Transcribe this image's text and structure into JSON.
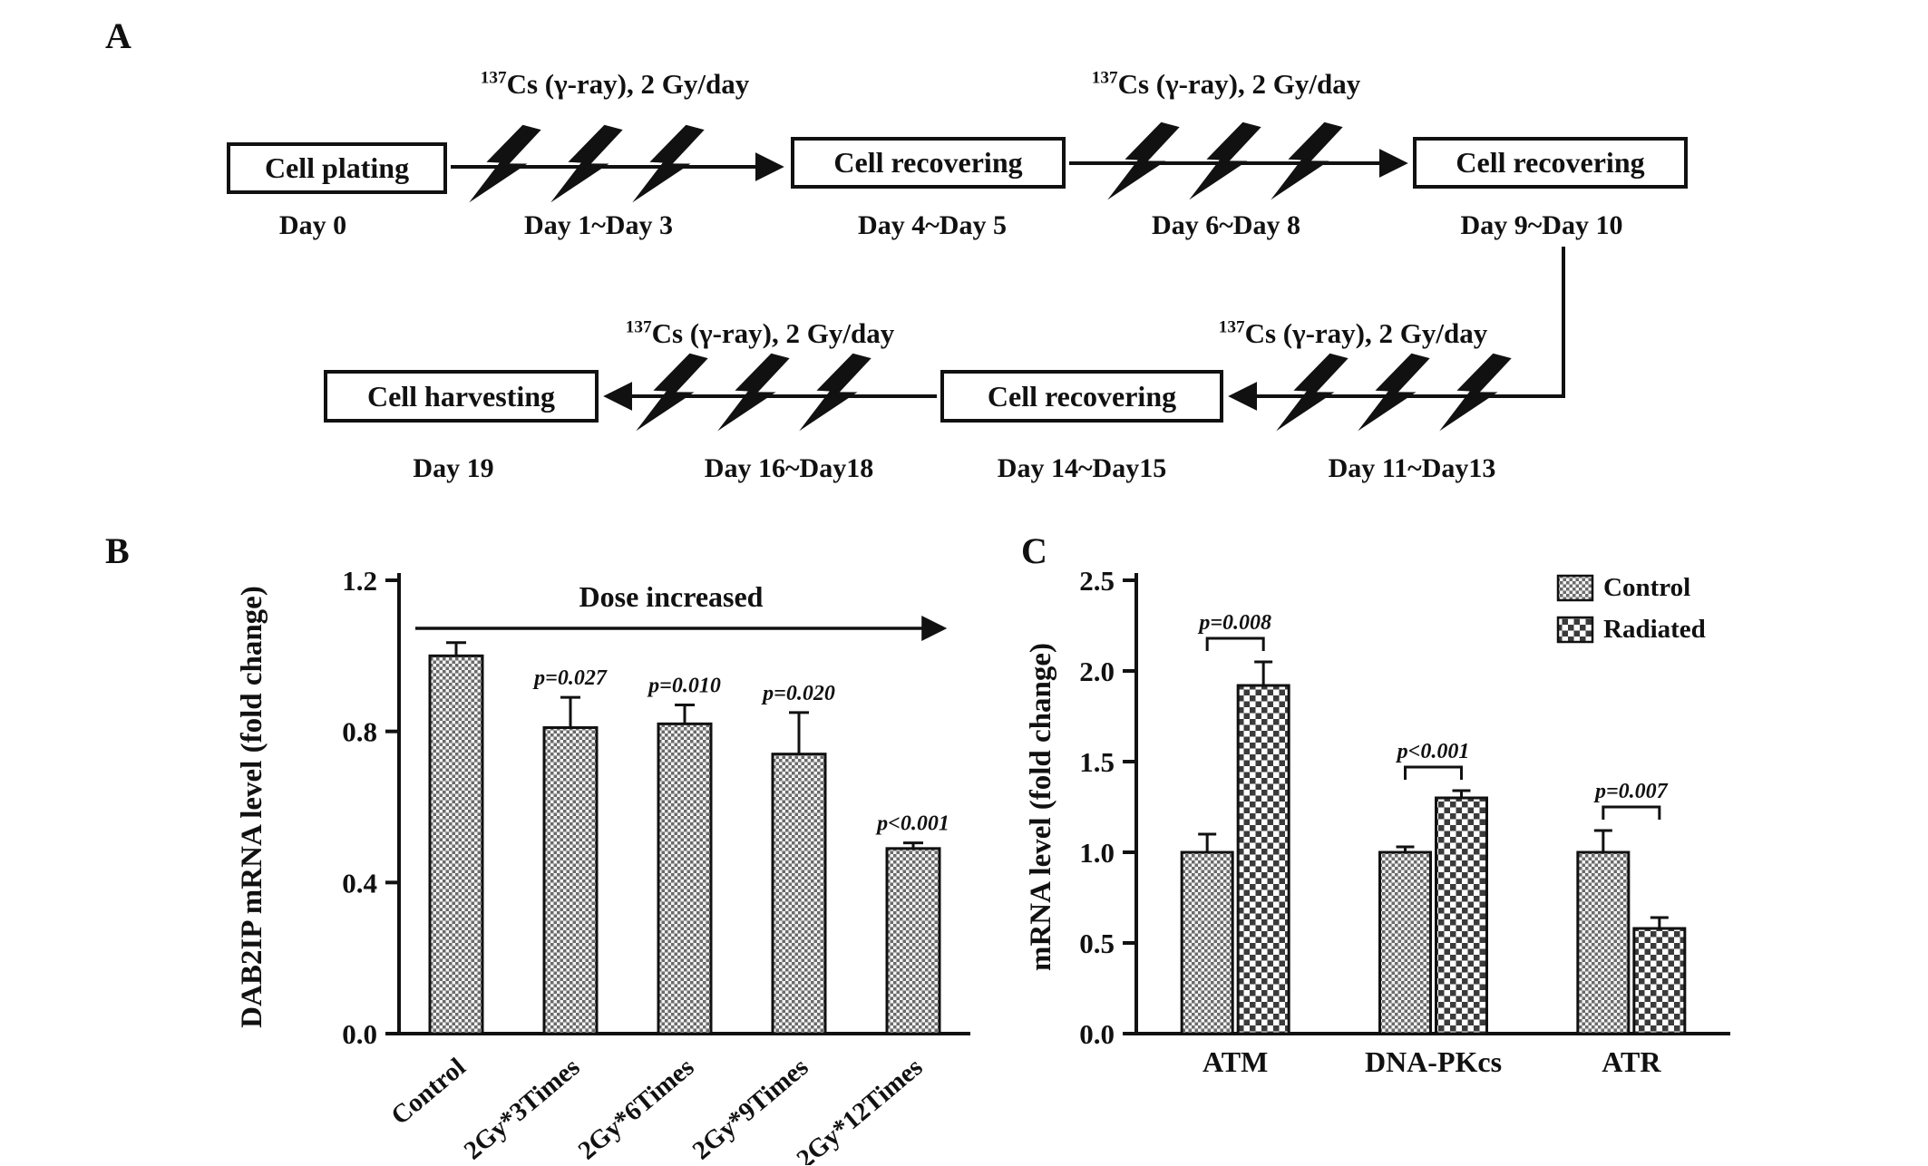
{
  "figure": {
    "panel_a_label": "A",
    "panel_b_label": "B",
    "panel_c_label": "C"
  },
  "colors": {
    "ink": "#111111",
    "background": "#ffffff"
  },
  "timeline": {
    "radiation_sup": "137",
    "radiation_text": "Cs (γ-ray),  2 Gy/day",
    "boxes": {
      "plating": "Cell plating",
      "recovering1": "Cell recovering",
      "recovering2": "Cell recovering",
      "recovering3": "Cell recovering",
      "harvesting": "Cell harvesting"
    },
    "days": {
      "d0": "Day 0",
      "d1_3": "Day 1~Day 3",
      "d4_5": "Day 4~Day 5",
      "d6_8": "Day 6~Day 8",
      "d9_10": "Day 9~Day 10",
      "d11_13": "Day 11~Day13",
      "d14_15": "Day 14~Day15",
      "d16_18": "Day 16~Day18",
      "d19": "Day 19"
    }
  },
  "chart_data": [
    {
      "id": "panelB",
      "type": "bar",
      "annotation": "Dose increased",
      "ylabel": "DAB2IP mRNA level (fold change)",
      "ylim": [
        0,
        1.2
      ],
      "yticks": [
        0,
        0.4,
        0.8,
        1.2
      ],
      "categories": [
        "Control",
        "2Gy*3Times",
        "2Gy*6Times",
        "2Gy*9Times",
        "2Gy*12Times"
      ],
      "values": [
        1.0,
        0.81,
        0.82,
        0.74,
        0.49
      ],
      "errors": [
        0.035,
        0.08,
        0.05,
        0.11,
        0.015
      ],
      "p_labels": [
        "",
        "p=0.027",
        "p=0.010",
        "p=0.020",
        "p<0.001"
      ],
      "grid": false,
      "legend_position": "none"
    },
    {
      "id": "panelC",
      "type": "grouped-bar",
      "ylabel": "mRNA level (fold change)",
      "ylim": [
        0,
        2.5
      ],
      "yticks": [
        0,
        0.5,
        1.0,
        1.5,
        2.0,
        2.5
      ],
      "categories": [
        "ATM",
        "DNA-PKcs",
        "ATR"
      ],
      "series": [
        {
          "name": "Control",
          "pattern": "fine-check",
          "values": [
            1.0,
            1.0,
            1.0
          ],
          "errors": [
            0.1,
            0.03,
            0.12
          ]
        },
        {
          "name": "Radiated",
          "pattern": "coarse-check",
          "values": [
            1.92,
            1.3,
            0.58
          ],
          "errors": [
            0.13,
            0.04,
            0.06
          ]
        }
      ],
      "comparisons": [
        {
          "group": 0,
          "label": "p=0.008"
        },
        {
          "group": 1,
          "label": "p<0.001"
        },
        {
          "group": 2,
          "label": "p=0.007"
        }
      ],
      "grid": false,
      "legend_position": "top-right"
    }
  ]
}
